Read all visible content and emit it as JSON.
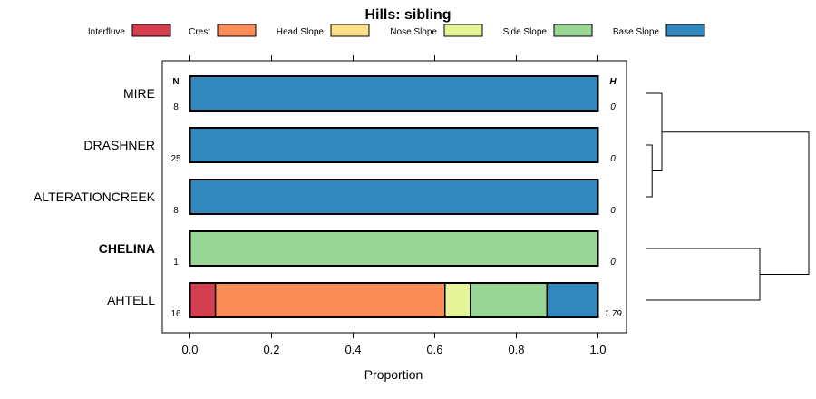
{
  "chart_data": {
    "type": "bar",
    "orientation": "horizontal-stacked",
    "title": "Hills: sibling",
    "xlabel": "Proportion",
    "xlim": [
      0,
      1
    ],
    "xticks": [
      "0.0",
      "0.2",
      "0.4",
      "0.6",
      "0.8",
      "1.0"
    ],
    "n_header": "N",
    "h_header": "H",
    "legend": {
      "placement": "top",
      "entries": [
        {
          "name": "Interfluve",
          "color": "#d53e4f"
        },
        {
          "name": "Crest",
          "color": "#fc8d59"
        },
        {
          "name": "Head Slope",
          "color": "#fee08b"
        },
        {
          "name": "Nose Slope",
          "color": "#e6f598"
        },
        {
          "name": "Side Slope",
          "color": "#99d594"
        },
        {
          "name": "Base Slope",
          "color": "#3288bd"
        }
      ]
    },
    "rows": [
      {
        "label": "MIRE",
        "n": "8",
        "h": "0",
        "bold": false,
        "values": [
          0,
          0,
          0,
          0,
          0,
          1.0
        ]
      },
      {
        "label": "DRASHNER",
        "n": "25",
        "h": "0",
        "bold": false,
        "values": [
          0,
          0,
          0,
          0,
          0,
          1.0
        ]
      },
      {
        "label": "ALTERATIONCREEK",
        "n": "8",
        "h": "0",
        "bold": false,
        "values": [
          0,
          0,
          0,
          0,
          0,
          1.0
        ]
      },
      {
        "label": "CHELINA",
        "n": "1",
        "h": "0",
        "bold": true,
        "values": [
          0,
          0,
          0,
          0,
          1.0,
          0
        ]
      },
      {
        "label": "AHTELL",
        "n": "16",
        "h": "1.79",
        "bold": false,
        "values": [
          0.0625,
          0.5625,
          0,
          0.0625,
          0.1875,
          0.125
        ]
      }
    ],
    "dendrogram": {
      "placement": "right",
      "merges": [
        {
          "a": "DRASHNER",
          "b": "ALTERATIONCREEK",
          "height": 0.04
        },
        {
          "a": "MIRE",
          "b": "DRASHNER+ALTERATIONCREEK",
          "height": 0.1
        },
        {
          "a": "CHELINA",
          "b": "AHTELL",
          "height": 0.7
        },
        {
          "a": "MIRE+DRASHNER+ALTERATIONCREEK",
          "b": "CHELINA+AHTELL",
          "height": 1.0
        }
      ]
    }
  }
}
